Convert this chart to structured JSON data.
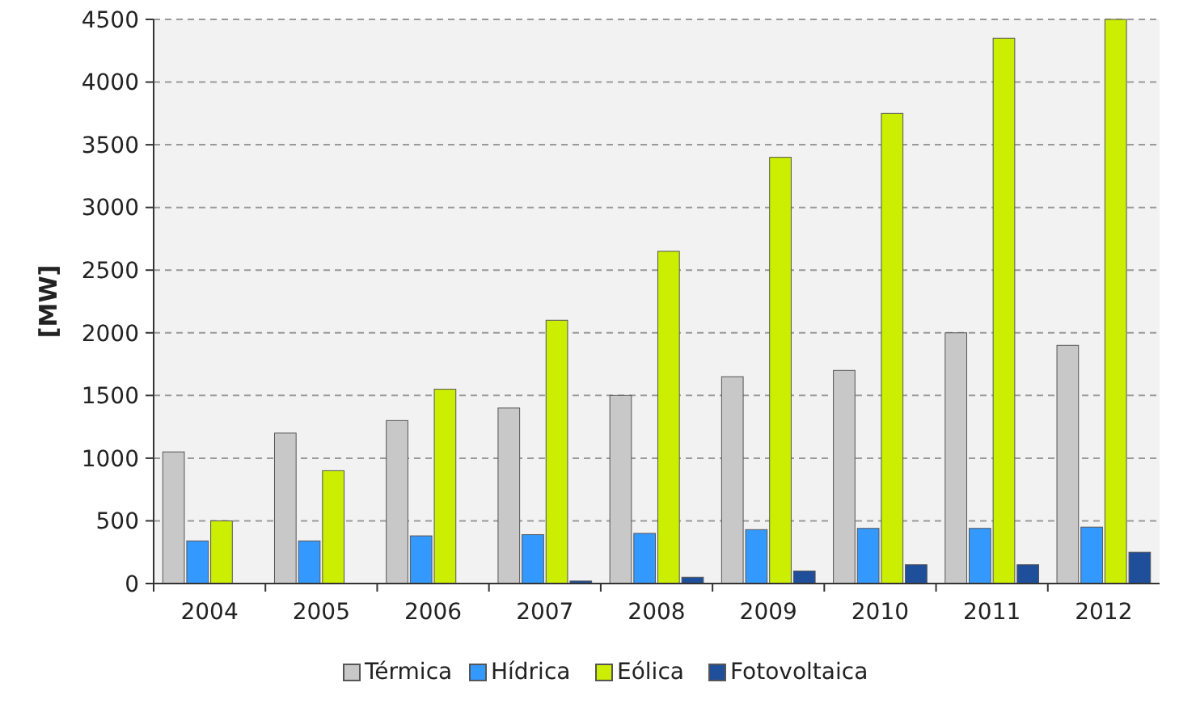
{
  "chart_data": {
    "type": "bar",
    "ylabel": "[MW]",
    "categories": [
      "2004",
      "2005",
      "2006",
      "2007",
      "2008",
      "2009",
      "2010",
      "2011",
      "2012"
    ],
    "series": [
      {
        "name": "Térmica",
        "color": "#c8c8c8",
        "values": [
          1050,
          1200,
          1300,
          1400,
          1500,
          1650,
          1700,
          2000,
          1900
        ]
      },
      {
        "name": "Hídrica",
        "color": "#3399ff",
        "values": [
          340,
          340,
          380,
          390,
          400,
          430,
          440,
          440,
          450
        ]
      },
      {
        "name": "Eólica",
        "color": "#ccee00",
        "values": [
          500,
          900,
          1550,
          2100,
          2650,
          3400,
          3750,
          4350,
          4500
        ]
      },
      {
        "name": "Fotovoltaica",
        "color": "#1f4e9a",
        "values": [
          null,
          null,
          null,
          20,
          50,
          100,
          150,
          150,
          250
        ]
      }
    ],
    "ylim": [
      0,
      4500
    ],
    "yticks": [
      0,
      500,
      1000,
      1500,
      2000,
      2500,
      3000,
      3500,
      4000,
      4500
    ],
    "grid": "y",
    "legend": "bottom"
  }
}
